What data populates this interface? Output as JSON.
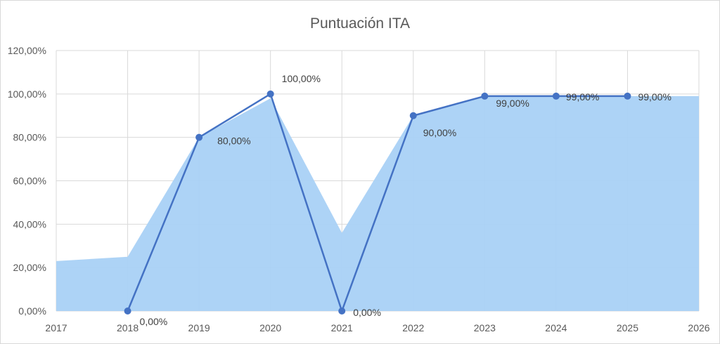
{
  "chart_data": {
    "type": "line",
    "title": "Puntuación ITA",
    "xlabel": "",
    "ylabel": "",
    "x": [
      "2017",
      "2018",
      "2019",
      "2020",
      "2021",
      "2022",
      "2023",
      "2024",
      "2025",
      "2026"
    ],
    "y_ticks": [
      "0,00%",
      "20,00%",
      "40,00%",
      "60,00%",
      "80,00%",
      "100,00%",
      "120,00%"
    ],
    "ylim": [
      0,
      120
    ],
    "grid": true,
    "legend": "none",
    "series": [
      {
        "kind": "line",
        "color": "#4472c4",
        "points": [
          {
            "x": "2018",
            "y": 0,
            "label": "0,00%"
          },
          {
            "x": "2019",
            "y": 80,
            "label": "80,00%"
          },
          {
            "x": "2020",
            "y": 100,
            "label": "100,00%"
          },
          {
            "x": "2021",
            "y": 0,
            "label": "0,00%"
          },
          {
            "x": "2022",
            "y": 90,
            "label": "90,00%"
          },
          {
            "x": "2023",
            "y": 99,
            "label": "99,00%"
          },
          {
            "x": "2024",
            "y": 99,
            "label": "99,00%"
          },
          {
            "x": "2025",
            "y": 99,
            "label": "99,00%"
          }
        ]
      },
      {
        "kind": "area",
        "color": "#a9d1f5",
        "points": [
          {
            "x": "2017",
            "y": 23
          },
          {
            "x": "2018",
            "y": 25
          },
          {
            "x": "2019",
            "y": 80
          },
          {
            "x": "2020",
            "y": 98
          },
          {
            "x": "2021",
            "y": 36
          },
          {
            "x": "2022",
            "y": 90
          },
          {
            "x": "2023",
            "y": 99
          },
          {
            "x": "2024",
            "y": 99
          },
          {
            "x": "2025",
            "y": 99
          },
          {
            "x": "2026",
            "y": 99
          }
        ]
      }
    ]
  }
}
